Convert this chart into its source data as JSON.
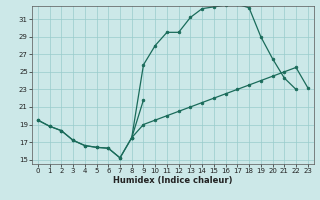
{
  "xlabel": "Humidex (Indice chaleur)",
  "bg_color": "#cce8e8",
  "grid_color": "#99cccc",
  "line_color": "#1a6b5a",
  "xlim": [
    -0.5,
    23.5
  ],
  "ylim": [
    14.5,
    32.5
  ],
  "xticks": [
    0,
    1,
    2,
    3,
    4,
    5,
    6,
    7,
    8,
    9,
    10,
    11,
    12,
    13,
    14,
    15,
    16,
    17,
    18,
    19,
    20,
    21,
    22,
    23
  ],
  "yticks": [
    15,
    17,
    19,
    21,
    23,
    25,
    27,
    29,
    31
  ],
  "line_zigzag_x": [
    0,
    1,
    2,
    3,
    4,
    5,
    6,
    7,
    8,
    9
  ],
  "line_zigzag_y": [
    19.5,
    18.8,
    18.3,
    17.2,
    16.6,
    16.4,
    16.3,
    15.2,
    17.5,
    21.8
  ],
  "line_top_x": [
    8,
    9,
    10,
    11,
    12,
    13,
    14,
    15,
    16,
    17,
    18,
    19,
    20,
    21,
    22
  ],
  "line_top_y": [
    17.5,
    25.8,
    28.0,
    29.5,
    29.5,
    31.2,
    32.2,
    32.4,
    32.6,
    32.7,
    32.3,
    29.0,
    26.5,
    24.3,
    23.0
  ],
  "line_mid_x": [
    0,
    1,
    2,
    3,
    4,
    5,
    6,
    7,
    8,
    9,
    10,
    11,
    12,
    13,
    14,
    15,
    16,
    17,
    18,
    19,
    20,
    21,
    22,
    23
  ],
  "line_mid_y": [
    19.5,
    18.8,
    18.3,
    17.2,
    16.6,
    16.4,
    16.3,
    15.2,
    17.5,
    19.0,
    19.5,
    20.0,
    20.5,
    21.0,
    21.5,
    22.0,
    22.5,
    23.0,
    23.5,
    24.0,
    24.5,
    25.0,
    25.5,
    23.2
  ]
}
